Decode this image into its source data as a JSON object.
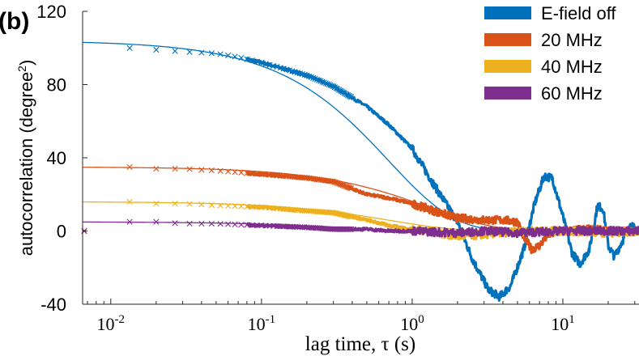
{
  "panel_label": "(b)",
  "chart_data": {
    "type": "scatter",
    "title": "",
    "xlabel": "lag time, τ (s)",
    "ylabel_main": "autocorrelation (degree",
    "ylabel_sup": "2",
    "ylabel_end": ")",
    "xscale": "log",
    "xlim": [
      0.0065,
      32
    ],
    "ylim": [
      -40,
      120
    ],
    "yticks": [
      {
        "value": -40,
        "label": "-40"
      },
      {
        "value": 0,
        "label": "0"
      },
      {
        "value": 40,
        "label": "40"
      },
      {
        "value": 80,
        "label": "80"
      },
      {
        "value": 120,
        "label": "120"
      }
    ],
    "xticks": [
      {
        "value": 0.01,
        "base": "10",
        "exp": "-2"
      },
      {
        "value": 0.1,
        "base": "10",
        "exp": "-1"
      },
      {
        "value": 1,
        "base": "10",
        "exp": "0"
      },
      {
        "value": 10,
        "base": "10",
        "exp": "1"
      }
    ],
    "legend_position": "top-right",
    "grid": false,
    "series": [
      {
        "name": "E-field off",
        "color": "#0072BD",
        "amplitude": 104,
        "tau": 0.7,
        "measured": [
          [
            0.0067,
            100
          ],
          [
            0.013,
            100
          ],
          [
            0.02,
            99
          ],
          [
            0.03,
            98
          ],
          [
            0.05,
            97
          ],
          [
            0.07,
            95
          ],
          [
            0.1,
            92
          ],
          [
            0.15,
            88
          ],
          [
            0.2,
            85
          ],
          [
            0.3,
            79
          ],
          [
            0.5,
            68
          ],
          [
            0.7,
            58
          ],
          [
            1.0,
            45
          ],
          [
            1.4,
            25
          ],
          [
            2.0,
            5
          ],
          [
            2.5,
            -15
          ],
          [
            3.2,
            -32
          ],
          [
            3.8,
            -36
          ],
          [
            4.5,
            -30
          ],
          [
            5.5,
            -10
          ],
          [
            6.5,
            15
          ],
          [
            7.5,
            30
          ],
          [
            8.5,
            29
          ],
          [
            10,
            8
          ],
          [
            11.5,
            -12
          ],
          [
            13,
            -18
          ],
          [
            15,
            -10
          ],
          [
            17,
            14
          ],
          [
            18.5,
            12
          ],
          [
            20,
            -8
          ],
          [
            22,
            -14
          ],
          [
            25,
            -5
          ],
          [
            28,
            3
          ],
          [
            32,
            0
          ]
        ]
      },
      {
        "name": "20 MHz",
        "color": "#D95319",
        "amplitude": 35,
        "tau": 1.3,
        "measured": [
          [
            0.0067,
            35
          ],
          [
            0.013,
            35
          ],
          [
            0.02,
            34
          ],
          [
            0.03,
            34
          ],
          [
            0.05,
            33
          ],
          [
            0.1,
            31
          ],
          [
            0.2,
            29
          ],
          [
            0.3,
            27
          ],
          [
            0.5,
            20
          ],
          [
            0.7,
            18
          ],
          [
            1.0,
            15
          ],
          [
            1.4,
            11
          ],
          [
            2.0,
            7
          ],
          [
            3.0,
            6
          ],
          [
            4.0,
            6
          ],
          [
            5.0,
            5
          ],
          [
            5.5,
            -3
          ],
          [
            6.2,
            -10
          ],
          [
            7.0,
            -8
          ],
          [
            8.0,
            -2
          ],
          [
            10,
            0
          ],
          [
            15,
            1
          ],
          [
            20,
            0
          ],
          [
            32,
            0
          ]
        ]
      },
      {
        "name": "40 MHz",
        "color": "#EDB120",
        "amplitude": 16,
        "tau": 0.7,
        "measured": [
          [
            0.0067,
            16
          ],
          [
            0.013,
            16
          ],
          [
            0.02,
            15
          ],
          [
            0.03,
            15
          ],
          [
            0.05,
            14
          ],
          [
            0.1,
            13
          ],
          [
            0.2,
            11
          ],
          [
            0.3,
            10
          ],
          [
            0.5,
            6
          ],
          [
            0.7,
            3
          ],
          [
            1.0,
            1
          ],
          [
            1.5,
            -1
          ],
          [
            2.0,
            -3
          ],
          [
            3.0,
            -2
          ],
          [
            4.0,
            -1
          ],
          [
            6.0,
            0
          ],
          [
            10,
            0
          ],
          [
            20,
            -1
          ],
          [
            32,
            0
          ]
        ]
      },
      {
        "name": "60 MHz",
        "color": "#7E2F8E",
        "amplitude": 5,
        "tau": 0.35,
        "measured": [
          [
            0.0067,
            5
          ],
          [
            0.013,
            5
          ],
          [
            0.02,
            5
          ],
          [
            0.03,
            4
          ],
          [
            0.05,
            4
          ],
          [
            0.1,
            3
          ],
          [
            0.2,
            2
          ],
          [
            0.3,
            1
          ],
          [
            0.5,
            1
          ],
          [
            0.7,
            0
          ],
          [
            1.0,
            0
          ],
          [
            2.0,
            -1
          ],
          [
            3.0,
            0
          ],
          [
            5.0,
            -1
          ],
          [
            10,
            0
          ],
          [
            20,
            0
          ],
          [
            32,
            0
          ]
        ]
      }
    ]
  }
}
